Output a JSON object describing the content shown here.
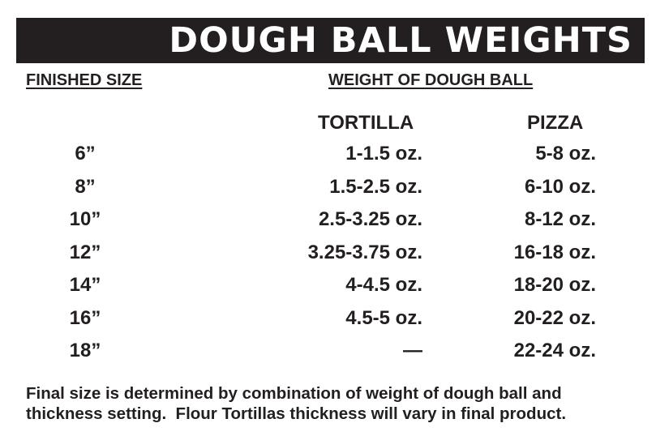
{
  "title": "DOUGH BALL WEIGHTS",
  "headers": {
    "finished_size": "FINISHED SIZE",
    "weight": "WEIGHT OF DOUGH BALL",
    "tortilla": "TORTILLA",
    "pizza": "PIZZA"
  },
  "rows": [
    {
      "size": "6”",
      "tortilla": "1-1.5 oz.",
      "pizza": "5-8 oz."
    },
    {
      "size": "8”",
      "tortilla": "1.5-2.5 oz.",
      "pizza": "6-10 oz."
    },
    {
      "size": "10”",
      "tortilla": "2.5-3.25 oz.",
      "pizza": "8-12 oz."
    },
    {
      "size": "12”",
      "tortilla": "3.25-3.75 oz.",
      "pizza": "16-18 oz."
    },
    {
      "size": "14”",
      "tortilla": "4-4.5 oz.",
      "pizza": "18-20 oz."
    },
    {
      "size": "16”",
      "tortilla": "4.5-5 oz.",
      "pizza": "20-22 oz."
    },
    {
      "size": "18”",
      "tortilla": "—",
      "pizza": "22-24 oz."
    }
  ],
  "footnote": {
    "line1": "Final size is determined by combination of weight of dough ball and",
    "line2": "thickness setting.  Flour Tortillas thickness will vary in final product."
  }
}
